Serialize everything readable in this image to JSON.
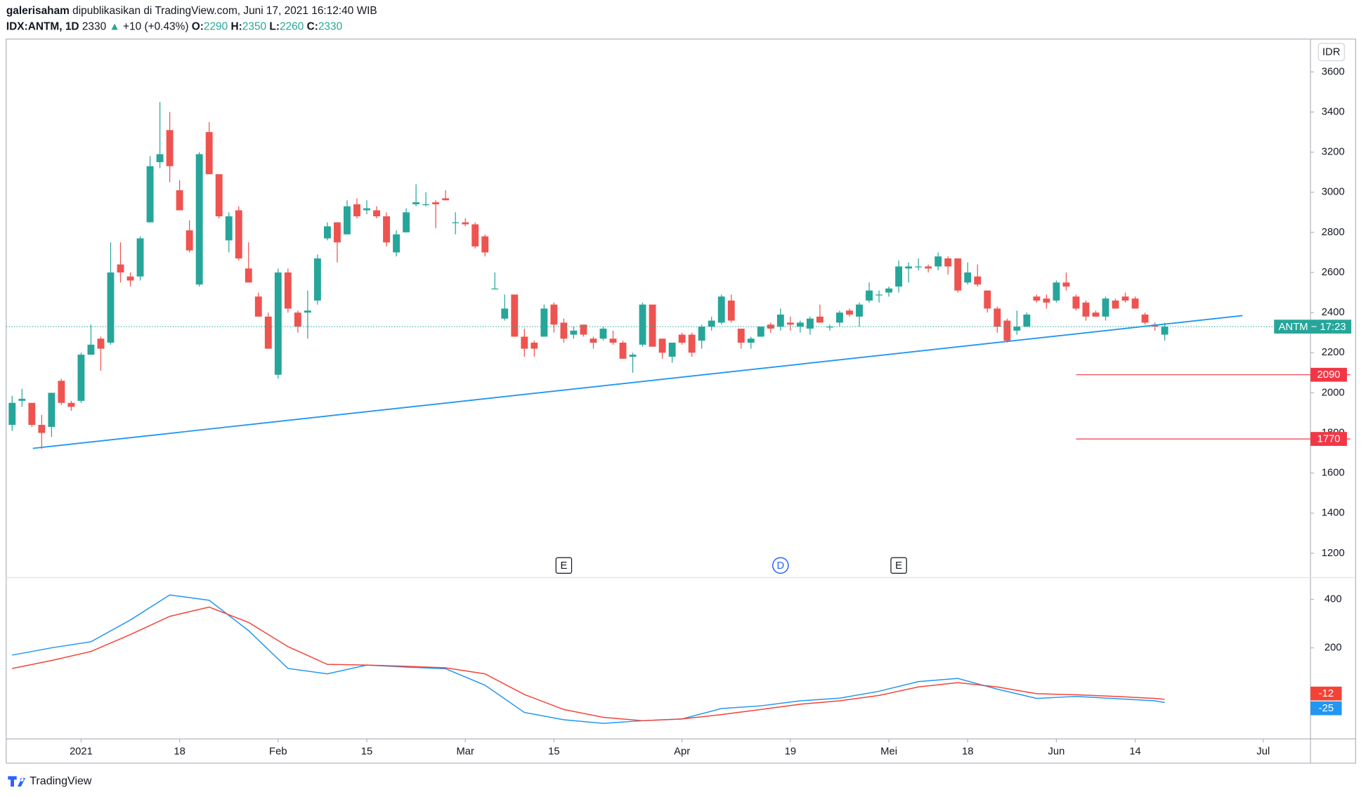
{
  "header": {
    "author": "galerisaham",
    "published": "dipublikasikan di TradingView.com, Juni 17, 2021 16:12:40 WIB",
    "symbol": "IDX:ANTM, 1D",
    "arrow": "▲",
    "change": "+10 (+0.43%)",
    "o_label": "O:",
    "h_label": "H:",
    "l_label": "L:",
    "c_label": "C:"
  },
  "footer": {
    "brand": "TradingView"
  },
  "chart_data": [
    {
      "type": "candlestick",
      "currency": "IDR",
      "up_color": "#26a69a",
      "down_color": "#ef5350",
      "open": [
        1840,
        1960,
        1950,
        1840,
        1830,
        2060,
        1950,
        1960,
        2190,
        2270,
        2250,
        2640,
        2580,
        2580,
        2850,
        3150,
        3310,
        3010,
        2810,
        2540,
        3300,
        3090,
        2760,
        2910,
        2620,
        2480,
        2380,
        2090,
        2600,
        2400,
        2400,
        2460,
        2770,
        2850,
        2790,
        2940,
        2910,
        2910,
        2880,
        2700,
        2800,
        2940,
        2940,
        2950,
        2970,
        2850,
        2850,
        2840,
        2780,
        2520,
        2370,
        2490,
        2280,
        2250,
        2280,
        2440,
        2350,
        2290,
        2340,
        2270,
        2270,
        2270,
        2250,
        2180,
        2240,
        2440,
        2270,
        2180,
        2290,
        2290,
        2260,
        2330,
        2350,
        2460,
        2320,
        2250,
        2280,
        2340,
        2330,
        2350,
        2330,
        2320,
        2380,
        2330,
        2350,
        2410,
        2380,
        2460,
        2490,
        2500,
        2530,
        2620,
        2630,
        2630,
        2630,
        2670,
        2670,
        2550,
        2580,
        2510,
        2420,
        2360,
        2310,
        2330,
        2480,
        2470,
        2460,
        2550,
        2480,
        2450,
        2400,
        2380,
        2460,
        2480,
        2470,
        2390,
        2340,
        2290
      ],
      "high": [
        1985,
        2020,
        1950,
        1890,
        2000,
        2070,
        1960,
        2200,
        2340,
        2280,
        2750,
        2750,
        2600,
        2780,
        3180,
        3450,
        3400,
        3060,
        2860,
        3200,
        3350,
        3090,
        2900,
        2930,
        2750,
        2500,
        2400,
        2620,
        2620,
        2410,
        2510,
        2690,
        2850,
        2850,
        2960,
        2970,
        2960,
        2930,
        2900,
        2810,
        2920,
        3040,
        3000,
        2960,
        3010,
        2900,
        2870,
        2850,
        2790,
        2600,
        2490,
        2490,
        2320,
        2260,
        2440,
        2450,
        2370,
        2330,
        2340,
        2280,
        2330,
        2310,
        2260,
        2200,
        2450,
        2440,
        2270,
        2250,
        2300,
        2300,
        2340,
        2380,
        2490,
        2490,
        2320,
        2280,
        2330,
        2350,
        2420,
        2380,
        2360,
        2380,
        2440,
        2340,
        2410,
        2420,
        2450,
        2550,
        2510,
        2530,
        2660,
        2650,
        2670,
        2640,
        2700,
        2680,
        2670,
        2650,
        2640,
        2510,
        2430,
        2370,
        2410,
        2400,
        2490,
        2490,
        2560,
        2600,
        2490,
        2460,
        2410,
        2480,
        2470,
        2500,
        2480,
        2400,
        2350,
        2350
      ],
      "low": [
        1810,
        1930,
        1830,
        1720,
        1780,
        1940,
        1910,
        1950,
        2190,
        2110,
        2240,
        2550,
        2530,
        2560,
        2850,
        3120,
        3050,
        2910,
        2700,
        2530,
        3090,
        2870,
        2700,
        2660,
        2550,
        2380,
        2220,
        2070,
        2400,
        2300,
        2270,
        2440,
        2760,
        2650,
        2790,
        2870,
        2890,
        2870,
        2730,
        2680,
        2800,
        2930,
        2930,
        2820,
        2960,
        2790,
        2830,
        2720,
        2680,
        2520,
        2360,
        2280,
        2180,
        2180,
        2280,
        2300,
        2250,
        2270,
        2280,
        2220,
        2260,
        2240,
        2170,
        2100,
        2230,
        2230,
        2170,
        2150,
        2240,
        2180,
        2220,
        2310,
        2340,
        2350,
        2220,
        2220,
        2280,
        2300,
        2310,
        2310,
        2300,
        2290,
        2350,
        2310,
        2330,
        2380,
        2330,
        2450,
        2450,
        2480,
        2500,
        2550,
        2610,
        2600,
        2610,
        2590,
        2500,
        2540,
        2530,
        2400,
        2300,
        2250,
        2290,
        2330,
        2450,
        2420,
        2450,
        2510,
        2410,
        2360,
        2380,
        2360,
        2420,
        2450,
        2420,
        2340,
        2310,
        2260
      ],
      "close": [
        1950,
        1970,
        1840,
        1800,
        2000,
        1950,
        1930,
        2190,
        2240,
        2220,
        2600,
        2600,
        2560,
        2770,
        3130,
        3190,
        3130,
        2910,
        2710,
        3190,
        3090,
        2880,
        2880,
        2670,
        2550,
        2380,
        2220,
        2600,
        2420,
        2330,
        2410,
        2670,
        2830,
        2750,
        2930,
        2880,
        2920,
        2880,
        2750,
        2790,
        2900,
        2950,
        2940,
        2940,
        2960,
        2850,
        2840,
        2730,
        2700,
        2520,
        2420,
        2280,
        2220,
        2220,
        2420,
        2340,
        2270,
        2310,
        2290,
        2250,
        2320,
        2250,
        2170,
        2190,
        2440,
        2230,
        2200,
        2250,
        2250,
        2200,
        2330,
        2360,
        2480,
        2360,
        2250,
        2270,
        2330,
        2320,
        2390,
        2340,
        2350,
        2370,
        2350,
        2330,
        2400,
        2390,
        2440,
        2510,
        2490,
        2520,
        2630,
        2630,
        2630,
        2620,
        2680,
        2630,
        2510,
        2600,
        2540,
        2420,
        2330,
        2260,
        2330,
        2390,
        2460,
        2450,
        2550,
        2530,
        2420,
        2380,
        2380,
        2470,
        2420,
        2460,
        2420,
        2350,
        2330,
        2330
      ],
      "xlim": [
        -0.6,
        131.8
      ],
      "xticks": [
        {
          "value": 7,
          "label": "2021"
        },
        {
          "value": 17,
          "label": "18"
        },
        {
          "value": 27,
          "label": "Feb"
        },
        {
          "value": 36,
          "label": "15"
        },
        {
          "value": 46,
          "label": "Mar"
        },
        {
          "value": 55,
          "label": "15"
        },
        {
          "value": 68,
          "label": "Apr"
        },
        {
          "value": 79,
          "label": "19"
        },
        {
          "value": 89,
          "label": "Mei"
        },
        {
          "value": 97,
          "label": "18"
        },
        {
          "value": 106,
          "label": "Jun"
        },
        {
          "value": 114,
          "label": "14"
        },
        {
          "value": 127,
          "label": "Jul"
        }
      ],
      "ylim": [
        1083,
        3764
      ],
      "yticks": [
        1200,
        1400,
        1600,
        1800,
        2000,
        2200,
        2400,
        2600,
        2800,
        3000,
        3200,
        3400,
        3600
      ],
      "trendline": {
        "x": [
          2.1,
          124.9
        ],
        "y": [
          1723,
          2385
        ],
        "color": "#2196f3"
      },
      "levels": [
        {
          "value": 2090,
          "x": 108,
          "color": "#f23645"
        },
        {
          "value": 1770,
          "x": 108,
          "color": "#f23645"
        }
      ],
      "last_price": {
        "name": "ANTM",
        "separator": "−",
        "countdown": "17:23",
        "color": "#26a69a"
      },
      "events": [
        {
          "x": 56,
          "label": "E"
        },
        {
          "x": 78,
          "label": "D"
        },
        {
          "x": 90,
          "label": "E"
        }
      ]
    },
    {
      "type": "line",
      "x": [
        0,
        4,
        8,
        12,
        16,
        20,
        24,
        28,
        32,
        36,
        40,
        44,
        48,
        52,
        56,
        60,
        64,
        68,
        72,
        76,
        80,
        84,
        88,
        92,
        96,
        100,
        104,
        108,
        112,
        116,
        117
      ],
      "series": [
        {
          "color": "#2196f3",
          "values": [
            170,
            200,
            225,
            315,
            418,
            396,
            271,
            115,
            93,
            129,
            121,
            114,
            46,
            -66,
            -96,
            -111,
            -100,
            -93,
            -50,
            -39,
            -18,
            -7,
            21,
            61,
            74,
            30,
            -8,
            0,
            -9,
            -18,
            -25
          ]
        },
        {
          "color": "#f44336",
          "values": [
            115,
            148,
            185,
            255,
            330,
            368,
            305,
            205,
            132,
            129,
            124,
            118,
            93,
            8,
            -54,
            -86,
            -100,
            -93,
            -75,
            -54,
            -32,
            -18,
            4,
            39,
            57,
            39,
            11,
            7,
            0,
            -8,
            -12
          ]
        }
      ],
      "ylim": [
        -175,
        486
      ],
      "yticks": [
        200,
        400
      ]
    }
  ]
}
